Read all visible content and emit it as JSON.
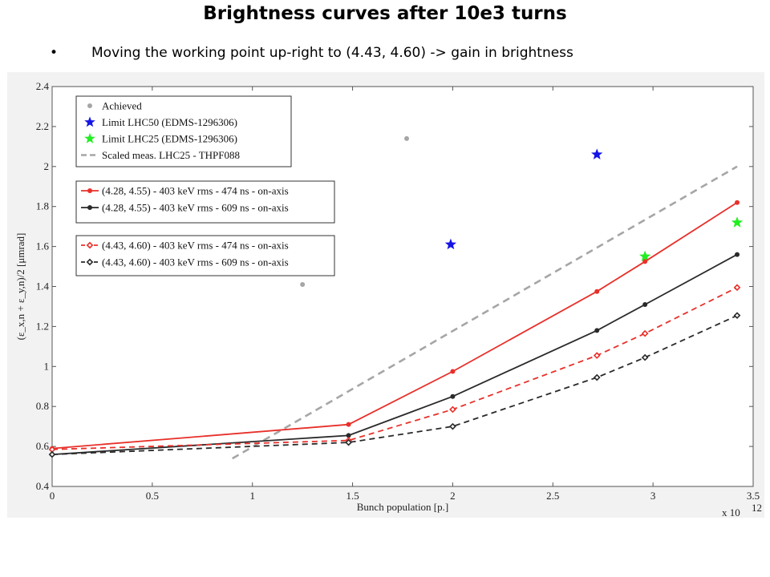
{
  "slide": {
    "title": "Brightness curves after 10e3 turns",
    "bullet_symbol": "•",
    "bullet": "Moving the working point up-right to (4.43, 4.60) -> gain in brightness"
  },
  "chart_data": {
    "type": "line",
    "xlabel": "Bunch population [p.]",
    "x_exponent_label": "x 10",
    "x_exponent_power": "12",
    "ylabel": "(ε_x,n + ε_y,n)/2 [μmrad]",
    "xlim": [
      0,
      3.5
    ],
    "ylim": [
      0.4,
      2.4
    ],
    "x_ticks": [
      "0",
      "0.5",
      "1",
      "1.5",
      "2",
      "2.5",
      "3",
      "3.5"
    ],
    "y_ticks": [
      "0.4",
      "0.6",
      "0.8",
      "1",
      "1.2",
      "1.4",
      "1.6",
      "1.8",
      "2",
      "2.2",
      "2.4"
    ],
    "grid": false,
    "legend_groups": [
      [
        "Achieved",
        "Limit LHC50 (EDMS-1296306)",
        "Limit LHC25 (EDMS-1296306)",
        "Scaled meas. LHC25 - THPF088"
      ],
      [
        "(4.28, 4.55) - 403 keV rms - 474 ns - on-axis",
        "(4.28, 4.55) - 403 keV rms - 609 ns - on-axis"
      ],
      [
        "(4.43, 4.60) - 403 keV rms - 474 ns - on-axis",
        "(4.43, 4.60) - 403 keV rms - 609 ns - on-axis"
      ]
    ],
    "series": [
      {
        "name": "Achieved",
        "kind": "points",
        "marker": "dot",
        "color": "#a6a6a6",
        "x": [
          1.25,
          1.77
        ],
        "y": [
          1.41,
          2.14
        ]
      },
      {
        "name": "Limit LHC50 (EDMS-1296306)",
        "kind": "points",
        "marker": "star",
        "color": "#1414e6",
        "x": [
          1.99,
          2.72
        ],
        "y": [
          1.61,
          2.06
        ]
      },
      {
        "name": "Limit LHC25 (EDMS-1296306)",
        "kind": "points",
        "marker": "star",
        "color": "#22ee22",
        "x": [
          2.96,
          3.42
        ],
        "y": [
          1.55,
          1.72
        ]
      },
      {
        "name": "Scaled meas. LHC25 - THPF088",
        "kind": "line",
        "dash": "dashed",
        "marker": "none",
        "color": "#a6a6a6",
        "x": [
          0.9,
          3.42
        ],
        "y": [
          0.54,
          2.0
        ]
      },
      {
        "name": "(4.28, 4.55) - 403 keV rms - 474 ns - on-axis",
        "kind": "line",
        "dash": "solid",
        "marker": "dot",
        "color": "#e8302a",
        "x": [
          0,
          1.48,
          2.0,
          2.72,
          2.96,
          3.42
        ],
        "y": [
          0.59,
          0.71,
          0.975,
          1.375,
          1.525,
          1.82
        ]
      },
      {
        "name": "(4.28, 4.55) - 403 keV rms - 609 ns - on-axis",
        "kind": "line",
        "dash": "solid",
        "marker": "dot",
        "color": "#2a2a2a",
        "x": [
          0,
          1.48,
          2.0,
          2.72,
          2.96,
          3.42
        ],
        "y": [
          0.56,
          0.655,
          0.85,
          1.18,
          1.31,
          1.56
        ]
      },
      {
        "name": "(4.43, 4.60) - 403 keV rms - 474 ns - on-axis",
        "kind": "line",
        "dash": "dashed",
        "marker": "diamond",
        "color": "#e8302a",
        "x": [
          0,
          1.48,
          2.0,
          2.72,
          2.96,
          3.42
        ],
        "y": [
          0.585,
          0.63,
          0.785,
          1.055,
          1.165,
          1.395
        ]
      },
      {
        "name": "(4.43, 4.60) - 403 keV rms - 609 ns - on-axis",
        "kind": "line",
        "dash": "dashed",
        "marker": "diamond",
        "color": "#2a2a2a",
        "x": [
          0,
          1.48,
          2.0,
          2.72,
          2.96,
          3.42
        ],
        "y": [
          0.56,
          0.62,
          0.7,
          0.945,
          1.045,
          1.255
        ]
      }
    ]
  }
}
